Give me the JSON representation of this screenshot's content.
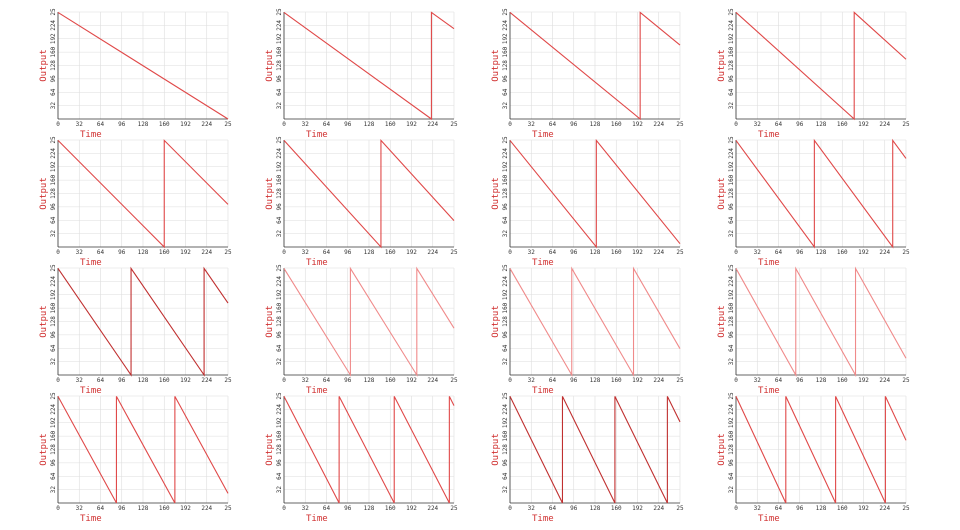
{
  "chart_data": [
    {
      "type": "line",
      "xlabel": "Time",
      "ylabel": "Output",
      "color": "#e04848",
      "grid": true,
      "xlim": [
        0,
        256
      ],
      "ylim": [
        0,
        256
      ],
      "xticks": [
        0,
        32,
        64,
        96,
        128,
        160,
        192,
        224,
        {
          "value": 256,
          "label": "25"
        }
      ],
      "yticks": [
        32,
        64,
        96,
        128,
        160,
        192,
        224,
        {
          "value": 256,
          "label": "25"
        }
      ],
      "x": [
        0,
        256
      ],
      "values": [
        255,
        0
      ]
    },
    {
      "type": "line",
      "xlabel": "Time",
      "ylabel": "Output",
      "color": "#e04848",
      "grid": true,
      "xlim": [
        0,
        256
      ],
      "ylim": [
        0,
        256
      ],
      "xticks": [
        0,
        32,
        64,
        96,
        128,
        160,
        192,
        224,
        {
          "value": 256,
          "label": "25"
        }
      ],
      "yticks": [
        32,
        64,
        96,
        128,
        160,
        192,
        224,
        {
          "value": 256,
          "label": "25"
        }
      ],
      "x": [
        0,
        222,
        222,
        256
      ],
      "values": [
        255,
        0,
        255,
        216
      ]
    },
    {
      "type": "line",
      "xlabel": "Time",
      "ylabel": "Output",
      "color": "#e04848",
      "grid": true,
      "xlim": [
        0,
        256
      ],
      "ylim": [
        0,
        256
      ],
      "xticks": [
        0,
        32,
        64,
        96,
        128,
        160,
        192,
        224,
        {
          "value": 256,
          "label": "25"
        }
      ],
      "yticks": [
        32,
        64,
        96,
        128,
        160,
        192,
        224,
        {
          "value": 256,
          "label": "25"
        }
      ],
      "x": [
        0,
        196,
        196,
        256
      ],
      "values": [
        255,
        0,
        255,
        177
      ]
    },
    {
      "type": "line",
      "xlabel": "Time",
      "ylabel": "Output",
      "color": "#e04848",
      "grid": true,
      "xlim": [
        0,
        256
      ],
      "ylim": [
        0,
        256
      ],
      "xticks": [
        0,
        32,
        64,
        96,
        128,
        160,
        192,
        224,
        {
          "value": 256,
          "label": "25"
        }
      ],
      "yticks": [
        32,
        64,
        96,
        128,
        160,
        192,
        224,
        {
          "value": 256,
          "label": "25"
        }
      ],
      "x": [
        0,
        178,
        178,
        256
      ],
      "values": [
        255,
        0,
        255,
        143
      ]
    },
    {
      "type": "line",
      "xlabel": "Time",
      "ylabel": "Output",
      "color": "#e04848",
      "grid": true,
      "xlim": [
        0,
        256
      ],
      "ylim": [
        0,
        256
      ],
      "xticks": [
        0,
        32,
        64,
        96,
        128,
        160,
        192,
        224,
        {
          "value": 256,
          "label": "25"
        }
      ],
      "yticks": [
        32,
        64,
        96,
        128,
        160,
        192,
        224,
        {
          "value": 256,
          "label": "25"
        }
      ],
      "x": [
        0,
        160,
        160,
        256
      ],
      "values": [
        255,
        0,
        255,
        102
      ]
    },
    {
      "type": "line",
      "xlabel": "Time",
      "ylabel": "Output",
      "color": "#e04848",
      "grid": true,
      "xlim": [
        0,
        256
      ],
      "ylim": [
        0,
        256
      ],
      "xticks": [
        0,
        32,
        64,
        96,
        128,
        160,
        192,
        224,
        {
          "value": 256,
          "label": "25"
        }
      ],
      "yticks": [
        32,
        64,
        96,
        128,
        160,
        192,
        224,
        {
          "value": 256,
          "label": "25"
        }
      ],
      "x": [
        0,
        146,
        146,
        256
      ],
      "values": [
        255,
        0,
        255,
        63
      ]
    },
    {
      "type": "line",
      "xlabel": "Time",
      "ylabel": "Output",
      "color": "#e04848",
      "grid": true,
      "xlim": [
        0,
        256
      ],
      "ylim": [
        0,
        256
      ],
      "xticks": [
        0,
        32,
        64,
        96,
        128,
        160,
        192,
        224,
        {
          "value": 256,
          "label": "25"
        }
      ],
      "yticks": [
        32,
        64,
        96,
        128,
        160,
        192,
        224,
        {
          "value": 256,
          "label": "25"
        }
      ],
      "x": [
        0,
        130,
        130,
        256
      ],
      "values": [
        255,
        0,
        255,
        8
      ]
    },
    {
      "type": "line",
      "xlabel": "Time",
      "ylabel": "Output",
      "color": "#e04848",
      "grid": true,
      "xlim": [
        0,
        256
      ],
      "ylim": [
        0,
        256
      ],
      "xticks": [
        0,
        32,
        64,
        96,
        128,
        160,
        192,
        224,
        {
          "value": 256,
          "label": "25"
        }
      ],
      "yticks": [
        32,
        64,
        96,
        128,
        160,
        192,
        224,
        {
          "value": 256,
          "label": "25"
        }
      ],
      "x": [
        0,
        118,
        118,
        236,
        236,
        256
      ],
      "values": [
        255,
        0,
        255,
        0,
        255,
        212
      ]
    },
    {
      "type": "line",
      "xlabel": "Time",
      "ylabel": "Output",
      "color": "#c03030",
      "grid": true,
      "xlim": [
        0,
        256
      ],
      "ylim": [
        0,
        256
      ],
      "xticks": [
        0,
        32,
        64,
        96,
        128,
        160,
        192,
        224,
        {
          "value": 256,
          "label": "25"
        }
      ],
      "yticks": [
        32,
        64,
        96,
        128,
        160,
        192,
        224,
        {
          "value": 256,
          "label": "25"
        }
      ],
      "x": [
        0,
        110,
        110,
        220,
        220,
        256
      ],
      "values": [
        255,
        0,
        255,
        0,
        255,
        172
      ]
    },
    {
      "type": "line",
      "xlabel": "Time",
      "ylabel": "Output",
      "color": "#f08a8a",
      "grid": true,
      "xlim": [
        0,
        256
      ],
      "ylim": [
        0,
        256
      ],
      "xticks": [
        0,
        32,
        64,
        96,
        128,
        160,
        192,
        224,
        {
          "value": 256,
          "label": "25"
        }
      ],
      "yticks": [
        32,
        64,
        96,
        128,
        160,
        192,
        224,
        {
          "value": 256,
          "label": "25"
        }
      ],
      "x": [
        0,
        100,
        100,
        200,
        200,
        256
      ],
      "values": [
        255,
        0,
        255,
        0,
        255,
        112
      ]
    },
    {
      "type": "line",
      "xlabel": "Time",
      "ylabel": "Output",
      "color": "#f08a8a",
      "grid": true,
      "xlim": [
        0,
        256
      ],
      "ylim": [
        0,
        256
      ],
      "xticks": [
        0,
        32,
        64,
        96,
        128,
        160,
        192,
        224,
        {
          "value": 256,
          "label": "25"
        }
      ],
      "yticks": [
        32,
        64,
        96,
        128,
        160,
        192,
        224,
        {
          "value": 256,
          "label": "25"
        }
      ],
      "x": [
        0,
        93,
        93,
        186,
        186,
        256
      ],
      "values": [
        255,
        0,
        255,
        0,
        255,
        63
      ]
    },
    {
      "type": "line",
      "xlabel": "Time",
      "ylabel": "Output",
      "color": "#f08a8a",
      "grid": true,
      "xlim": [
        0,
        256
      ],
      "ylim": [
        0,
        256
      ],
      "xticks": [
        0,
        32,
        64,
        96,
        128,
        160,
        192,
        224,
        {
          "value": 256,
          "label": "25"
        }
      ],
      "yticks": [
        32,
        64,
        96,
        128,
        160,
        192,
        224,
        {
          "value": 256,
          "label": "25"
        }
      ],
      "x": [
        0,
        90,
        90,
        180,
        180,
        256
      ],
      "values": [
        255,
        0,
        255,
        0,
        255,
        40
      ]
    },
    {
      "type": "line",
      "xlabel": "Time",
      "ylabel": "Output",
      "color": "#e04848",
      "grid": true,
      "xlim": [
        0,
        256
      ],
      "ylim": [
        0,
        256
      ],
      "xticks": [
        0,
        32,
        64,
        96,
        128,
        160,
        192,
        224,
        {
          "value": 256,
          "label": "25"
        }
      ],
      "yticks": [
        32,
        64,
        96,
        128,
        160,
        192,
        224,
        {
          "value": 256,
          "label": "25"
        }
      ],
      "x": [
        0,
        88,
        88,
        176,
        176,
        256
      ],
      "values": [
        255,
        0,
        255,
        0,
        255,
        23
      ]
    },
    {
      "type": "line",
      "xlabel": "Time",
      "ylabel": "Output",
      "color": "#e04848",
      "grid": true,
      "xlim": [
        0,
        256
      ],
      "ylim": [
        0,
        256
      ],
      "xticks": [
        0,
        32,
        64,
        96,
        128,
        160,
        192,
        224,
        {
          "value": 256,
          "label": "25"
        }
      ],
      "yticks": [
        32,
        64,
        96,
        128,
        160,
        192,
        224,
        {
          "value": 256,
          "label": "25"
        }
      ],
      "x": [
        0,
        83,
        83,
        166,
        166,
        249,
        249,
        256
      ],
      "values": [
        255,
        0,
        255,
        0,
        255,
        0,
        255,
        233
      ]
    },
    {
      "type": "line",
      "xlabel": "Time",
      "ylabel": "Output",
      "color": "#c03030",
      "grid": true,
      "xlim": [
        0,
        256
      ],
      "ylim": [
        0,
        256
      ],
      "xticks": [
        0,
        32,
        64,
        96,
        128,
        160,
        192,
        224,
        {
          "value": 256,
          "label": "25"
        }
      ],
      "yticks": [
        32,
        64,
        96,
        128,
        160,
        192,
        224,
        {
          "value": 256,
          "label": "25"
        }
      ],
      "x": [
        0,
        79,
        79,
        158,
        158,
        237,
        237,
        256
      ],
      "values": [
        255,
        0,
        255,
        0,
        255,
        0,
        255,
        194
      ]
    },
    {
      "type": "line",
      "xlabel": "Time",
      "ylabel": "Output",
      "color": "#e04848",
      "grid": true,
      "xlim": [
        0,
        256
      ],
      "ylim": [
        0,
        256
      ],
      "xticks": [
        0,
        32,
        64,
        96,
        128,
        160,
        192,
        224,
        {
          "value": 256,
          "label": "25"
        }
      ],
      "yticks": [
        32,
        64,
        96,
        128,
        160,
        192,
        224,
        {
          "value": 256,
          "label": "25"
        }
      ],
      "x": [
        0,
        75,
        75,
        150,
        150,
        225,
        225,
        256
      ],
      "values": [
        255,
        0,
        255,
        0,
        255,
        0,
        255,
        150
      ]
    }
  ]
}
